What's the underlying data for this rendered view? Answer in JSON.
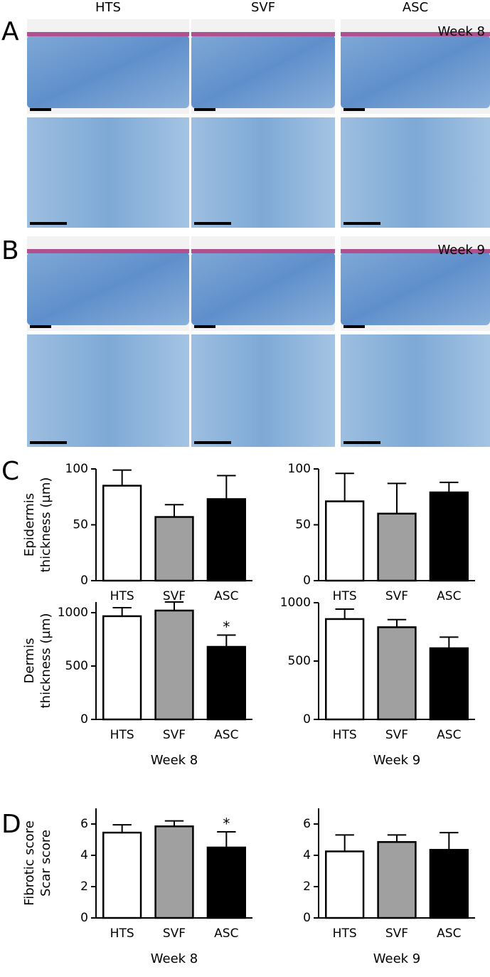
{
  "figure": {
    "panel_labels": [
      "A",
      "B",
      "C",
      "D"
    ],
    "column_headers": [
      "HTS",
      "SVF",
      "ASC"
    ],
    "image_labels": [
      "Week 8",
      "Week 9"
    ]
  },
  "chart_data": [
    {
      "type": "bar",
      "ylabel": [
        "Epidermis",
        "thickness (µm)"
      ],
      "categories": [
        "HTS",
        "SVF",
        "ASC"
      ],
      "values": [
        85,
        57,
        73
      ],
      "errors": [
        14,
        11,
        21
      ],
      "colors": [
        "#ffffff",
        "#a0a0a0",
        "#000000"
      ],
      "ylim": [
        0,
        100
      ],
      "yticks": [
        0,
        50,
        100
      ]
    },
    {
      "type": "bar",
      "categories": [
        "HTS",
        "SVF",
        "ASC"
      ],
      "values": [
        71,
        60,
        79
      ],
      "errors": [
        25,
        27,
        9
      ],
      "colors": [
        "#ffffff",
        "#a0a0a0",
        "#000000"
      ],
      "ylim": [
        0,
        100
      ],
      "yticks": [
        0,
        50,
        100
      ]
    },
    {
      "type": "bar",
      "ylabel": [
        "Dermis",
        "thickness (µm)"
      ],
      "xlabel": "Week 8",
      "categories": [
        "HTS",
        "SVF",
        "ASC"
      ],
      "values": [
        967,
        1020,
        680
      ],
      "errors": [
        80,
        80,
        110
      ],
      "colors": [
        "#ffffff",
        "#a0a0a0",
        "#000000"
      ],
      "ylim": [
        0,
        1100
      ],
      "yticks": [
        0,
        500,
        1000
      ],
      "annotations": [
        {
          "category": "ASC",
          "text": "*"
        }
      ]
    },
    {
      "type": "bar",
      "xlabel": "Week 9",
      "categories": [
        "HTS",
        "SVF",
        "ASC"
      ],
      "values": [
        860,
        790,
        610
      ],
      "errors": [
        85,
        65,
        95
      ],
      "colors": [
        "#ffffff",
        "#a0a0a0",
        "#000000"
      ],
      "ylim": [
        0,
        1000
      ],
      "yticks": [
        0,
        500,
        1000
      ]
    },
    {
      "type": "bar",
      "ylabel": [
        "Fibrotic score",
        "Scar score"
      ],
      "xlabel": "Week 8",
      "categories": [
        "HTS",
        "SVF",
        "ASC"
      ],
      "values": [
        5.45,
        5.85,
        4.5
      ],
      "errors": [
        0.5,
        0.35,
        1.0
      ],
      "colors": [
        "#ffffff",
        "#a0a0a0",
        "#000000"
      ],
      "ylim": [
        0,
        7
      ],
      "yticks": [
        0,
        2,
        4,
        6
      ],
      "annotations": [
        {
          "category": "ASC",
          "text": "*"
        }
      ]
    },
    {
      "type": "bar",
      "xlabel": "Week 9",
      "categories": [
        "HTS",
        "SVF",
        "ASC"
      ],
      "values": [
        4.25,
        4.85,
        4.35
      ],
      "errors": [
        1.05,
        0.45,
        1.1
      ],
      "colors": [
        "#ffffff",
        "#a0a0a0",
        "#000000"
      ],
      "ylim": [
        0,
        7
      ],
      "yticks": [
        0,
        2,
        4,
        6
      ]
    }
  ]
}
